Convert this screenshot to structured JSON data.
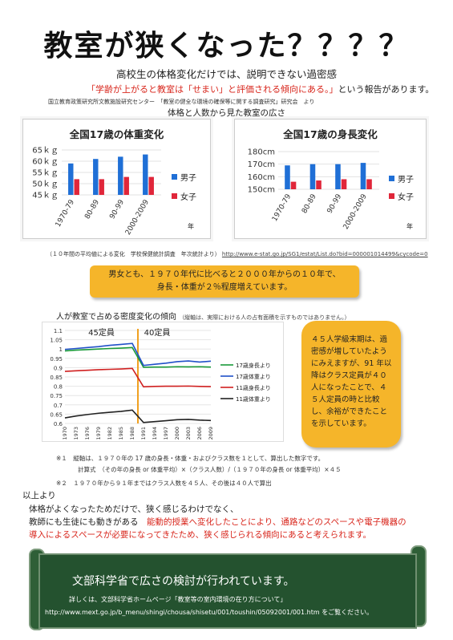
{
  "title": "教室が狭くなった？？？？",
  "subtitle": "高校生の体格変化だけでは、説明できない過密感",
  "report": {
    "quote": "「学齢が上がると教室は「せまい」と評価される傾向にある。」",
    "rest": "という報告があります。"
  },
  "source1": "国立教育政策研究所文教施設研究センター　「教室の健全な環境の確保等に関する調査研究」研究会　より",
  "section_heading": "体格と人数から見た教室の広さ",
  "chart_data": [
    {
      "type": "bar",
      "title": "全国17歳の体重変化",
      "categories": [
        "1970-79",
        "80-89",
        "90-99",
        "2000-2009"
      ],
      "series": [
        {
          "name": "男子",
          "values": [
            59,
            61,
            62,
            63
          ]
        },
        {
          "name": "女子",
          "values": [
            52,
            52,
            53,
            53
          ]
        }
      ],
      "ylim": [
        45,
        65
      ],
      "yticks": [
        "65ｋｇ",
        "60ｋｇ",
        "55ｋｇ",
        "50ｋｇ",
        "45ｋｇ"
      ],
      "xlabel": "年",
      "colors": {
        "男子": "#1f6fd6",
        "女子": "#e0263a"
      }
    },
    {
      "type": "bar",
      "title": "全国17歳の身長変化",
      "categories": [
        "1970-79",
        "80-89",
        "90-99",
        "2000-2009"
      ],
      "series": [
        {
          "name": "男子",
          "values": [
            169,
            170,
            170,
            171
          ]
        },
        {
          "name": "女子",
          "values": [
            156,
            157,
            158,
            158
          ]
        }
      ],
      "ylim": [
        150,
        180
      ],
      "yticks": [
        "180cm",
        "170cm",
        "160cm",
        "150cm"
      ],
      "xlabel": "年",
      "colors": {
        "男子": "#1f6fd6",
        "女子": "#e0263a"
      }
    },
    {
      "type": "line",
      "title": "人が教室で占める密度変化の傾向",
      "x": [
        "1970",
        "1973",
        "1976",
        "1979",
        "1982",
        "1985",
        "1988",
        "1991",
        "1994",
        "1997",
        "2000",
        "2003",
        "2006",
        "2009"
      ],
      "ylim": [
        0.6,
        1.1
      ],
      "yticks": [
        "1.1",
        "1.05",
        "1",
        "0.95",
        "0.9",
        "0.85",
        "0.8",
        "0.75",
        "0.7",
        "0.65",
        "0.6"
      ],
      "annotations": [
        "45定員",
        "40定員"
      ],
      "series": [
        {
          "name": "17歳身長より",
          "color": "#1a9a3a",
          "values": [
            0.99,
            0.994,
            0.997,
            1.0,
            1.003,
            1.005,
            1.008,
            0.902,
            0.903,
            0.903,
            0.905,
            0.904,
            0.905,
            0.903
          ]
        },
        {
          "name": "17歳体重より",
          "color": "#2050c8",
          "values": [
            0.998,
            1.003,
            1.008,
            1.013,
            1.02,
            1.025,
            1.03,
            0.912,
            0.918,
            0.924,
            0.932,
            0.936,
            0.93,
            0.935
          ]
        },
        {
          "name": "11歳身長より",
          "color": "#d02020",
          "values": [
            0.88,
            0.883,
            0.886,
            0.889,
            0.891,
            0.893,
            0.896,
            0.797,
            0.799,
            0.8,
            0.8,
            0.801,
            0.799,
            0.798
          ]
        },
        {
          "name": "11歳体重より",
          "color": "#222222",
          "values": [
            0.63,
            0.64,
            0.648,
            0.655,
            0.66,
            0.665,
            0.672,
            0.605,
            0.61,
            0.615,
            0.62,
            0.622,
            0.618,
            0.616
          ]
        }
      ]
    }
  ],
  "source2": {
    "text": "（１０年間の平均値による変化　学校保健統計調査　年次統計より）",
    "url": "http://www.e-stat.go.jp/SG1/estat/List.do?bid=000001014499&cycode=0"
  },
  "highlight": {
    "line1": "男女とも、１９７０年代に比べると２０００年からの１０年で、",
    "line2": "身長・体重が２％程度増えています。"
  },
  "line_chart_note": "（縦軸は、実際における人の占有面積を示すものではありません。）",
  "callout": "４５人学級末期は、過密感が増していたようにみえますが、91 年以降はクラス定員が４０人になったことで、４５人定員の時と比較し、余裕ができたことを示しています。",
  "footnotes": {
    "n1_mark": "※１",
    "n1": "縦軸は、１９７０年の 17 歳の身長・体重・およびクラス数を１として、算出した数字です。",
    "formula": "計算式　（その年の身長 or 体重平均）×（クラス人数）/（１９７０年の身長 or 体重平均）×４５",
    "n2_mark": "※２",
    "n2": "１９７０年から９１年まではクラス人数を４５人、その後は４０人で算出"
  },
  "conclusion": {
    "head": "以上より",
    "line1": "体格がよくなったためだけで、狭く感じるわけでなく、",
    "line2a": "教師にも生徒にも動きがある",
    "line2b": "能動的授業へ変化したことにより、通路などのスペースや電子機器の",
    "line3": "導入によるスペースが必要になってきたため、狭く感じられる傾向にあると考えられます。"
  },
  "banner": {
    "headline": "文部科学省で広さの検討が行われています。",
    "detail": "詳しくは、文部科学省ホームページ「教室等の室内環境の在り方について」",
    "url": "http://www.mext.go.jp/b_menu/shingi/chousa/shisetu/001/toushin/05092001/001.htm",
    "url_suffix": "をご覧ください。"
  }
}
